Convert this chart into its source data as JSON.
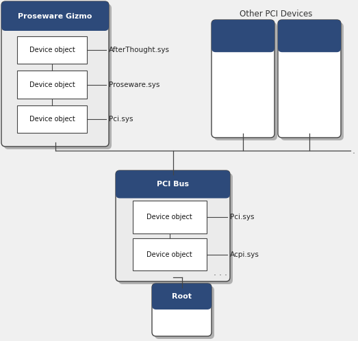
{
  "bg_color": "#f0f0f0",
  "header_color": "#2d4a7a",
  "header_text_color": "#ffffff",
  "box_fill": "#ffffff",
  "box_fill_inner": "#f8f8f8",
  "box_border": "#444444",
  "line_color": "#444444",
  "shadow_color": "#b0b0b0",
  "gizmo_title": "Proseware Gizmo",
  "gizmo_devices": [
    "Device object",
    "Device object",
    "Device object"
  ],
  "gizmo_labels": [
    "AfterThought.sys",
    "Proseware.sys",
    "Pci.sys"
  ],
  "pci_bus_title": "PCI Bus",
  "pci_bus_devices": [
    "Device object",
    "Device object"
  ],
  "pci_bus_labels": [
    "Pci.sys",
    "Acpi.sys"
  ],
  "root_title": "Root",
  "other_pci_title": "Other PCI Devices"
}
